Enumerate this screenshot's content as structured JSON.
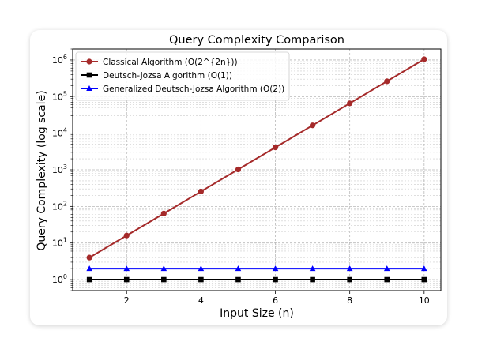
{
  "chart_data": {
    "type": "line",
    "title": "Query Complexity Comparison",
    "xlabel": "Input Size (n)",
    "ylabel": "Query Complexity (log scale)",
    "x": [
      1,
      2,
      3,
      4,
      5,
      6,
      7,
      8,
      9,
      10
    ],
    "xticks": [
      2,
      4,
      6,
      8,
      10
    ],
    "xlim": [
      0.55,
      10.45
    ],
    "ylim": [
      0.5,
      2000000
    ],
    "yscale": "log",
    "yticks": [
      {
        "value": 1,
        "exp": "0"
      },
      {
        "value": 10,
        "exp": "1"
      },
      {
        "value": 100,
        "exp": "2"
      },
      {
        "value": 1000,
        "exp": "3"
      },
      {
        "value": 10000,
        "exp": "4"
      },
      {
        "value": 100000,
        "exp": "5"
      },
      {
        "value": 1000000,
        "exp": "6"
      }
    ],
    "grid": true,
    "legend_position": "top-left",
    "series": [
      {
        "name": "Classical Algorithm (O(2^{2n}))",
        "color": "#a52a2a",
        "marker": "circle",
        "values": [
          4,
          16,
          64,
          256,
          1024,
          4096,
          16384,
          65536,
          262144,
          1048576
        ]
      },
      {
        "name": "Deutsch-Jozsa Algorithm (O(1))",
        "color": "#000000",
        "marker": "square",
        "values": [
          1,
          1,
          1,
          1,
          1,
          1,
          1,
          1,
          1,
          1
        ]
      },
      {
        "name": "Generalized Deutsch-Jozsa Algorithm (O(2))",
        "color": "#0000ff",
        "marker": "triangle",
        "values": [
          2,
          2,
          2,
          2,
          2,
          2,
          2,
          2,
          2,
          2
        ]
      }
    ]
  }
}
